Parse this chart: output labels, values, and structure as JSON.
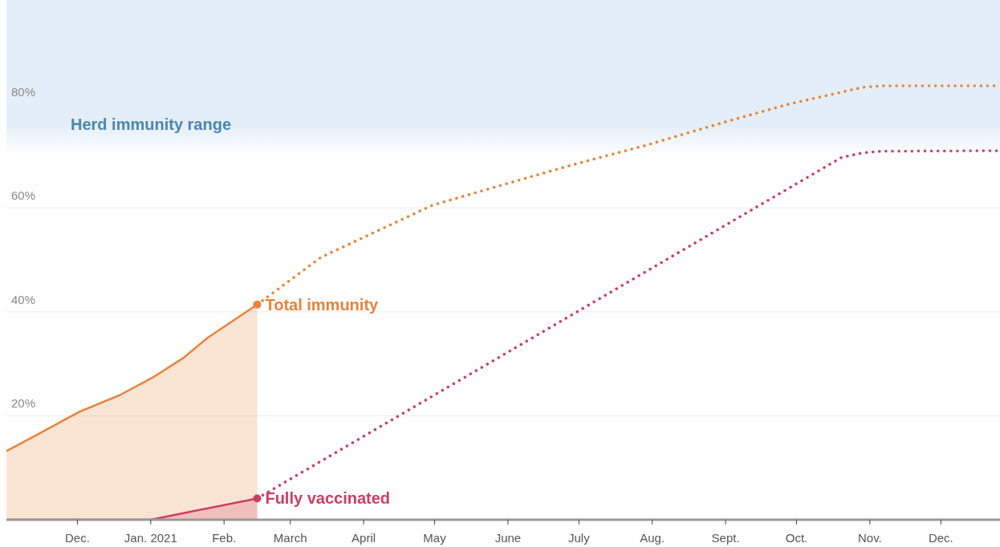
{
  "chart_data": {
    "type": "line",
    "xlim": [
      "2020-11-01",
      "2021-12-26"
    ],
    "ylim": [
      0,
      100
    ],
    "xticks": [
      {
        "value": "2020-12-01",
        "label": "Dec."
      },
      {
        "value": "2021-01-01",
        "label": "Jan. 2021"
      },
      {
        "value": "2021-02-01",
        "label": "Feb."
      },
      {
        "value": "2021-03-01",
        "label": "March"
      },
      {
        "value": "2021-04-01",
        "label": "April"
      },
      {
        "value": "2021-05-01",
        "label": "May"
      },
      {
        "value": "2021-06-01",
        "label": "June"
      },
      {
        "value": "2021-07-01",
        "label": "July"
      },
      {
        "value": "2021-08-01",
        "label": "Aug."
      },
      {
        "value": "2021-09-01",
        "label": "Sept."
      },
      {
        "value": "2021-10-01",
        "label": "Oct."
      },
      {
        "value": "2021-11-01",
        "label": "Nov."
      },
      {
        "value": "2021-12-01",
        "label": "Dec."
      }
    ],
    "yticks": [
      {
        "value": 20,
        "label": "20%"
      },
      {
        "value": 40,
        "label": "40%"
      },
      {
        "value": 60,
        "label": "60%"
      },
      {
        "value": 80,
        "label": "80%"
      }
    ],
    "grid": "y",
    "bands": [
      {
        "axis": "y",
        "from": 70,
        "to": 100,
        "label": "Herd immunity range",
        "color": "#e3eef8"
      }
    ],
    "series": [
      {
        "name": "Total immunity",
        "type": "area",
        "color": "#e8833a",
        "x": [
          "2020-11-01",
          "2020-11-15",
          "2020-12-02",
          "2020-12-19",
          "2021-01-02",
          "2021-01-15",
          "2021-01-25",
          "2021-02-15"
        ],
        "values": [
          13.2,
          16.6,
          20.8,
          24,
          27.4,
          31.2,
          35,
          41.4
        ]
      },
      {
        "type": "line",
        "color": "#e8833a",
        "line_style": "dotted",
        "x": [
          "2021-02-15",
          "2021-03-14",
          "2021-04-30",
          "2021-05-31",
          "2021-06-30",
          "2021-07-29",
          "2021-08-30",
          "2021-09-28",
          "2021-10-29",
          "2021-11-06",
          "2021-12-26"
        ],
        "values": [
          41.4,
          50.5,
          60.5,
          64.6,
          68.5,
          72,
          76.3,
          80,
          83.2,
          83.5,
          83.5
        ]
      },
      {
        "name": "Fully vaccinated",
        "type": "area",
        "color": "#cc3d62",
        "x": [
          "2020-11-01",
          "2021-01-01",
          "2021-02-15"
        ],
        "values": [
          0,
          0,
          4.1
        ]
      },
      {
        "type": "line",
        "color": "#cc3d62",
        "line_style": "dotted",
        "x": [
          "2021-02-15",
          "2021-10-20",
          "2021-10-29",
          "2021-11-06",
          "2021-12-26"
        ],
        "values": [
          4.1,
          69.7,
          70.6,
          70.9,
          71
        ]
      }
    ]
  }
}
